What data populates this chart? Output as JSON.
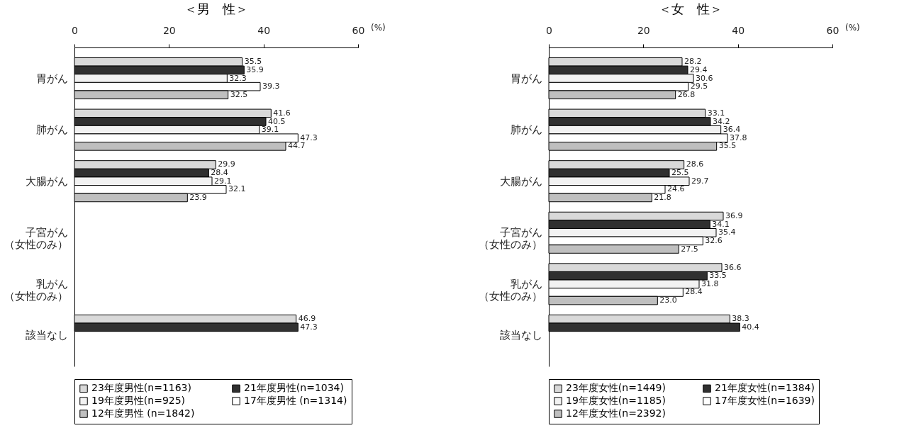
{
  "chart_data": [
    {
      "type": "bar",
      "orientation": "horizontal",
      "title": "＜男　性＞",
      "xlabel": "(%)",
      "categories": [
        "胃がん",
        "肺がん",
        "大腸がん",
        "子宮がん（女性のみ）",
        "乳がん（女性のみ）",
        "該当なし"
      ],
      "xlim": [
        0,
        60
      ],
      "xticks": [
        0,
        20,
        40,
        60
      ],
      "grid": false,
      "legend": "bottom",
      "data_labels": true,
      "series": [
        {
          "name": "23年度男性(n=1163)",
          "color": "#d9d9d9",
          "values": [
            35.5,
            41.6,
            29.9,
            null,
            null,
            46.9
          ]
        },
        {
          "name": "21年度男性(n=1034)",
          "color": "#303030",
          "values": [
            35.9,
            40.5,
            28.4,
            null,
            null,
            47.3
          ]
        },
        {
          "name": "19年度男性(n=925)",
          "color": "#f2f2f2",
          "values": [
            32.3,
            39.1,
            29.1,
            null,
            null,
            null
          ]
        },
        {
          "name": "17年度男性 (n=1314)",
          "color": "#ffffff",
          "values": [
            39.3,
            47.3,
            32.1,
            null,
            null,
            null
          ]
        },
        {
          "name": "12年度男性 (n=1842)",
          "color": "#bfbfbf",
          "values": [
            32.5,
            44.7,
            23.9,
            null,
            null,
            null
          ]
        }
      ]
    },
    {
      "type": "bar",
      "orientation": "horizontal",
      "title": "＜女　性＞",
      "xlabel": "(%)",
      "categories": [
        "胃がん",
        "肺がん",
        "大腸がん",
        "子宮がん（女性のみ）",
        "乳がん（女性のみ）",
        "該当なし"
      ],
      "xlim": [
        0,
        60
      ],
      "xticks": [
        0,
        20,
        40,
        60
      ],
      "grid": false,
      "legend": "bottom",
      "data_labels": true,
      "series": [
        {
          "name": "23年度女性(n=1449)",
          "color": "#d9d9d9",
          "values": [
            28.2,
            33.1,
            28.6,
            36.9,
            36.6,
            38.3
          ]
        },
        {
          "name": "21年度女性(n=1384)",
          "color": "#303030",
          "values": [
            29.4,
            34.2,
            25.5,
            34.1,
            33.5,
            40.4
          ]
        },
        {
          "name": "19年度女性(n=1185)",
          "color": "#f2f2f2",
          "values": [
            30.6,
            36.4,
            29.7,
            35.4,
            31.8,
            null
          ]
        },
        {
          "name": "17年度女性(n=1639)",
          "color": "#ffffff",
          "values": [
            29.5,
            37.8,
            24.6,
            32.6,
            28.4,
            null
          ]
        },
        {
          "name": "12年度女性(n=2392)",
          "color": "#bfbfbf",
          "values": [
            26.8,
            35.5,
            21.8,
            27.5,
            23.0,
            null
          ],
          "value_labels": [
            "26.8",
            "35.5",
            "21.8",
            "27.5",
            "23.0",
            null
          ]
        }
      ]
    }
  ]
}
